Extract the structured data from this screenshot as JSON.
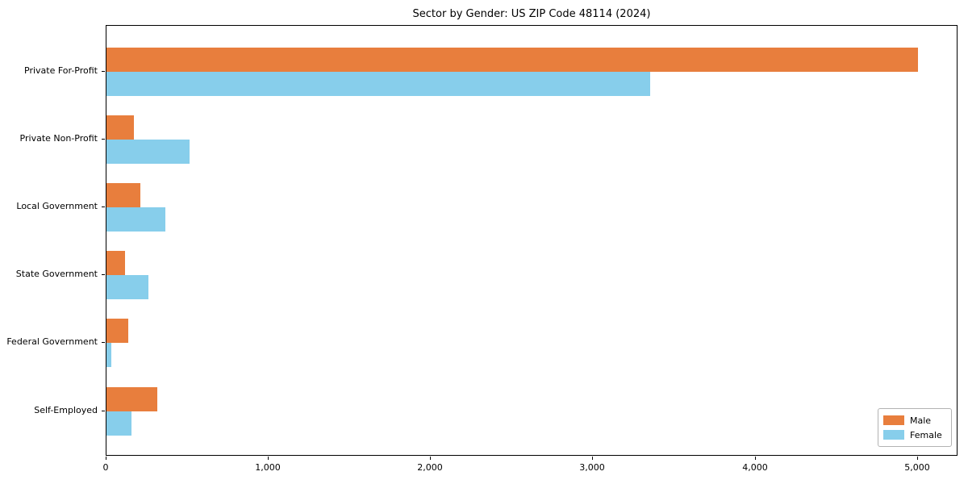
{
  "chart_data": {
    "type": "bar",
    "orientation": "horizontal",
    "title": "Sector by Gender: US ZIP Code 48114 (2024)",
    "xlabel": "",
    "ylabel": "",
    "categories": [
      "Private For-Profit",
      "Private Non-Profit",
      "Local Government",
      "State Government",
      "Federal Government",
      "Self-Employed"
    ],
    "series": [
      {
        "name": "Male",
        "color": "#e87e3d",
        "values": [
          5000,
          170,
          210,
          115,
          135,
          315
        ]
      },
      {
        "name": "Female",
        "color": "#87ceeb",
        "values": [
          3350,
          510,
          365,
          260,
          30,
          155
        ]
      }
    ],
    "xlim": [
      0,
      5250
    ],
    "xticks": [
      0,
      1000,
      2000,
      3000,
      4000,
      5000
    ],
    "xtick_labels": [
      "0",
      "1,000",
      "2,000",
      "3,000",
      "4,000",
      "5,000"
    ],
    "grid": false,
    "legend_position": "lower right",
    "legend": [
      "Male",
      "Female"
    ]
  }
}
